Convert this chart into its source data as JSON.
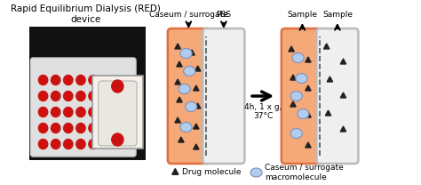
{
  "bg_color": "#ffffff",
  "orange_color": "#F5A878",
  "orange_border": "#E07040",
  "gray_color": "#EFEFEF",
  "gray_border": "#BBBBBB",
  "blue_ellipse_face": "#B0CCEE",
  "blue_ellipse_edge": "#8090B8",
  "triangle_color": "#222222",
  "title_left": "Rapid Equilibrium Dialysis (RED)\ndevice",
  "label_caseum": "Caseum / surrogate",
  "label_pbs": "PBS",
  "label_sample1": "Sample",
  "label_sample2": "Sample",
  "label_condition": "4h, 1 x g,\n37°C",
  "legend_drug": "Drug molecule",
  "legend_caseum": "Caseum / surrogate\nmacromolecule",
  "photo_bg": "#111111",
  "photo_plate_frame": "#e0e0e0",
  "photo_red": "#cc1111",
  "photo_inset_bg": "#f5f0ec",
  "photo_tube_bg": "#e8e8e0",
  "photo_tube_inner": "#d0d0c0"
}
